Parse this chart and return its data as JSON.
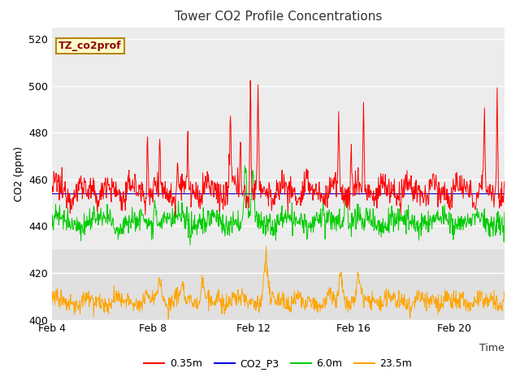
{
  "title": "Tower CO2 Profile Concentrations",
  "xlabel": "Time",
  "ylabel": "CO2 (ppm)",
  "xlim": [
    0,
    18
  ],
  "ylim": [
    400,
    525
  ],
  "yticks": [
    400,
    420,
    440,
    460,
    480,
    500,
    520
  ],
  "xtick_labels": [
    "Feb 4",
    "Feb 8",
    "Feb 12",
    "Feb 16",
    "Feb 20"
  ],
  "xtick_positions": [
    0,
    4,
    8,
    12,
    16
  ],
  "annotation_text": "TZ_co2prof",
  "legend_labels": [
    "0.35m",
    "CO2_P3",
    "6.0m",
    "23.5m"
  ],
  "colors": {
    "red": "#ff0000",
    "blue": "#0000dd",
    "green": "#00cc00",
    "orange": "#ffa500"
  },
  "fig_bg": "#ffffff",
  "plot_bg": "#e8e8e8",
  "grid_color": "#ffffff",
  "band_light": "#f0f0f0",
  "band_dark": "#e0e0e0"
}
